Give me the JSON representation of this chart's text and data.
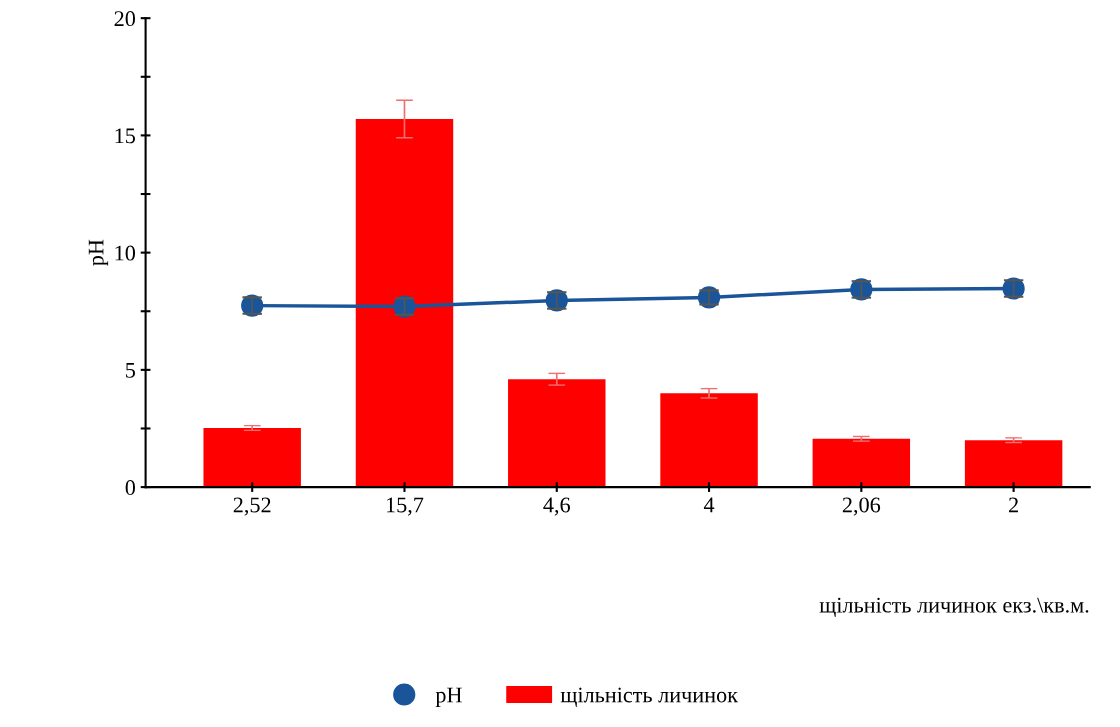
{
  "chart_data": {
    "type": "bar",
    "ylabel": "pH",
    "xlabel": "щільність личинок екз.\\кв.м.",
    "categories": [
      "2,52",
      "15,7",
      "4,6",
      "4",
      "2,06",
      "2"
    ],
    "series": [
      {
        "name": "pH",
        "type": "line",
        "color": "#1a5599",
        "values": [
          7.74,
          7.7,
          7.96,
          8.09,
          8.43,
          8.47
        ],
        "errors": [
          0.35,
          0.35,
          0.35,
          0.3,
          0.35,
          0.35
        ]
      },
      {
        "name": "щільність личинок",
        "color": "#ff0000",
        "values": [
          2.52,
          15.7,
          4.6,
          4,
          2.06,
          2
        ],
        "errors": [
          0.1,
          0.8,
          0.25,
          0.2,
          0.1,
          0.1
        ]
      }
    ],
    "ylim": [
      0,
      20
    ],
    "yticks": [
      0,
      {
        "value": 2.5,
        "label": null
      },
      5,
      {
        "value": 7.5,
        "label": null
      },
      10,
      {
        "value": 12.5,
        "label": null
      },
      15,
      {
        "value": 17.5,
        "label": null
      },
      20
    ],
    "marker": "circle",
    "line_style": "solid",
    "grid": false,
    "legend": "bottom"
  }
}
